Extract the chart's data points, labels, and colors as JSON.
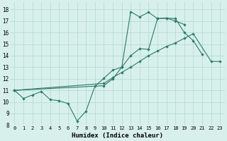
{
  "title": "",
  "xlabel": "Humidex (Indice chaleur)",
  "ylabel": "",
  "xlim": [
    -0.5,
    23.5
  ],
  "ylim": [
    8,
    18.6
  ],
  "yticks": [
    8,
    9,
    10,
    11,
    12,
    13,
    14,
    15,
    16,
    17,
    18
  ],
  "xticks": [
    0,
    1,
    2,
    3,
    4,
    5,
    6,
    7,
    8,
    9,
    10,
    11,
    12,
    13,
    14,
    15,
    16,
    17,
    18,
    19,
    20,
    21,
    22,
    23
  ],
  "line_color": "#2d7a6a",
  "bg_color": "#d8f0ec",
  "grid_color": "#b0d8d0",
  "line1_x": [
    0,
    1,
    2,
    3,
    4,
    5,
    6,
    7,
    8,
    9,
    10,
    11,
    12,
    13,
    14,
    15,
    16,
    17,
    18,
    19,
    20,
    21
  ],
  "line1_y": [
    11.0,
    10.3,
    10.6,
    10.9,
    10.2,
    10.1,
    9.85,
    8.35,
    9.2,
    11.35,
    12.05,
    12.75,
    13.0,
    14.0,
    14.6,
    14.55,
    17.2,
    17.25,
    17.2,
    16.0,
    15.3,
    14.1
  ],
  "line2_x": [
    0,
    10,
    11,
    12,
    13,
    14,
    15,
    16,
    17,
    18,
    19
  ],
  "line2_y": [
    11.0,
    11.4,
    12.0,
    13.0,
    17.8,
    17.35,
    17.75,
    17.2,
    17.25,
    17.0,
    16.7
  ],
  "line3_x": [
    0,
    10,
    11,
    12,
    13,
    14,
    15,
    16,
    17,
    18,
    19,
    20,
    22,
    23
  ],
  "line3_y": [
    11.0,
    11.6,
    12.1,
    12.55,
    13.0,
    13.5,
    14.0,
    14.4,
    14.8,
    15.1,
    15.5,
    15.9,
    13.5,
    13.5
  ]
}
